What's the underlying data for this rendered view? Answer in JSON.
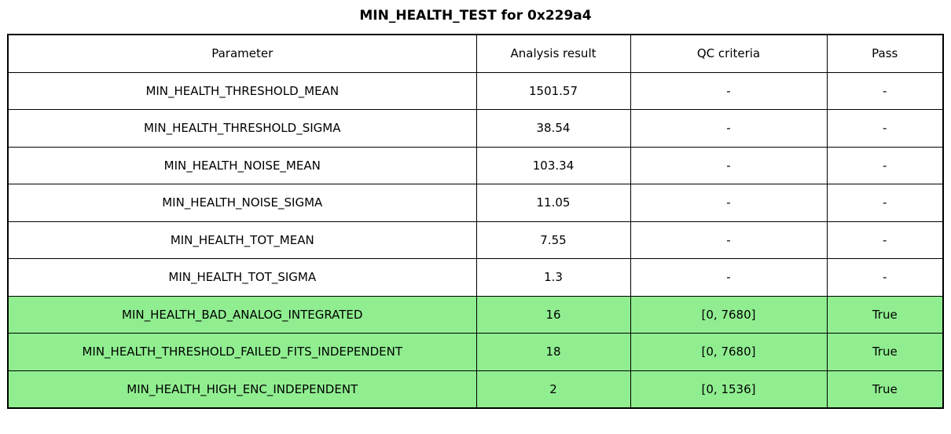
{
  "title": "MIN_HEALTH_TEST for 0x229a4",
  "colors": {
    "highlight_green": "#90EE90",
    "border": "#000000",
    "background": "#FFFFFF"
  },
  "chart_data": {
    "type": "table",
    "title": "MIN_HEALTH_TEST for 0x229a4",
    "headers": [
      "Parameter",
      "Analysis result",
      "QC criteria",
      "Pass"
    ],
    "rows": [
      {
        "parameter": "MIN_HEALTH_THRESHOLD_MEAN",
        "result": "1501.57",
        "qc": "-",
        "pass": "-",
        "highlight": false
      },
      {
        "parameter": "MIN_HEALTH_THRESHOLD_SIGMA",
        "result": "38.54",
        "qc": "-",
        "pass": "-",
        "highlight": false
      },
      {
        "parameter": "MIN_HEALTH_NOISE_MEAN",
        "result": "103.34",
        "qc": "-",
        "pass": "-",
        "highlight": false
      },
      {
        "parameter": "MIN_HEALTH_NOISE_SIGMA",
        "result": "11.05",
        "qc": "-",
        "pass": "-",
        "highlight": false
      },
      {
        "parameter": "MIN_HEALTH_TOT_MEAN",
        "result": "7.55",
        "qc": "-",
        "pass": "-",
        "highlight": false
      },
      {
        "parameter": "MIN_HEALTH_TOT_SIGMA",
        "result": "1.3",
        "qc": "-",
        "pass": "-",
        "highlight": false
      },
      {
        "parameter": "MIN_HEALTH_BAD_ANALOG_INTEGRATED",
        "result": "16",
        "qc": "[0, 7680]",
        "pass": "True",
        "highlight": true
      },
      {
        "parameter": "MIN_HEALTH_THRESHOLD_FAILED_FITS_INDEPENDENT",
        "result": "18",
        "qc": "[0, 7680]",
        "pass": "True",
        "highlight": true
      },
      {
        "parameter": "MIN_HEALTH_HIGH_ENC_INDEPENDENT",
        "result": "2",
        "qc": "[0, 1536]",
        "pass": "True",
        "highlight": true
      }
    ]
  }
}
